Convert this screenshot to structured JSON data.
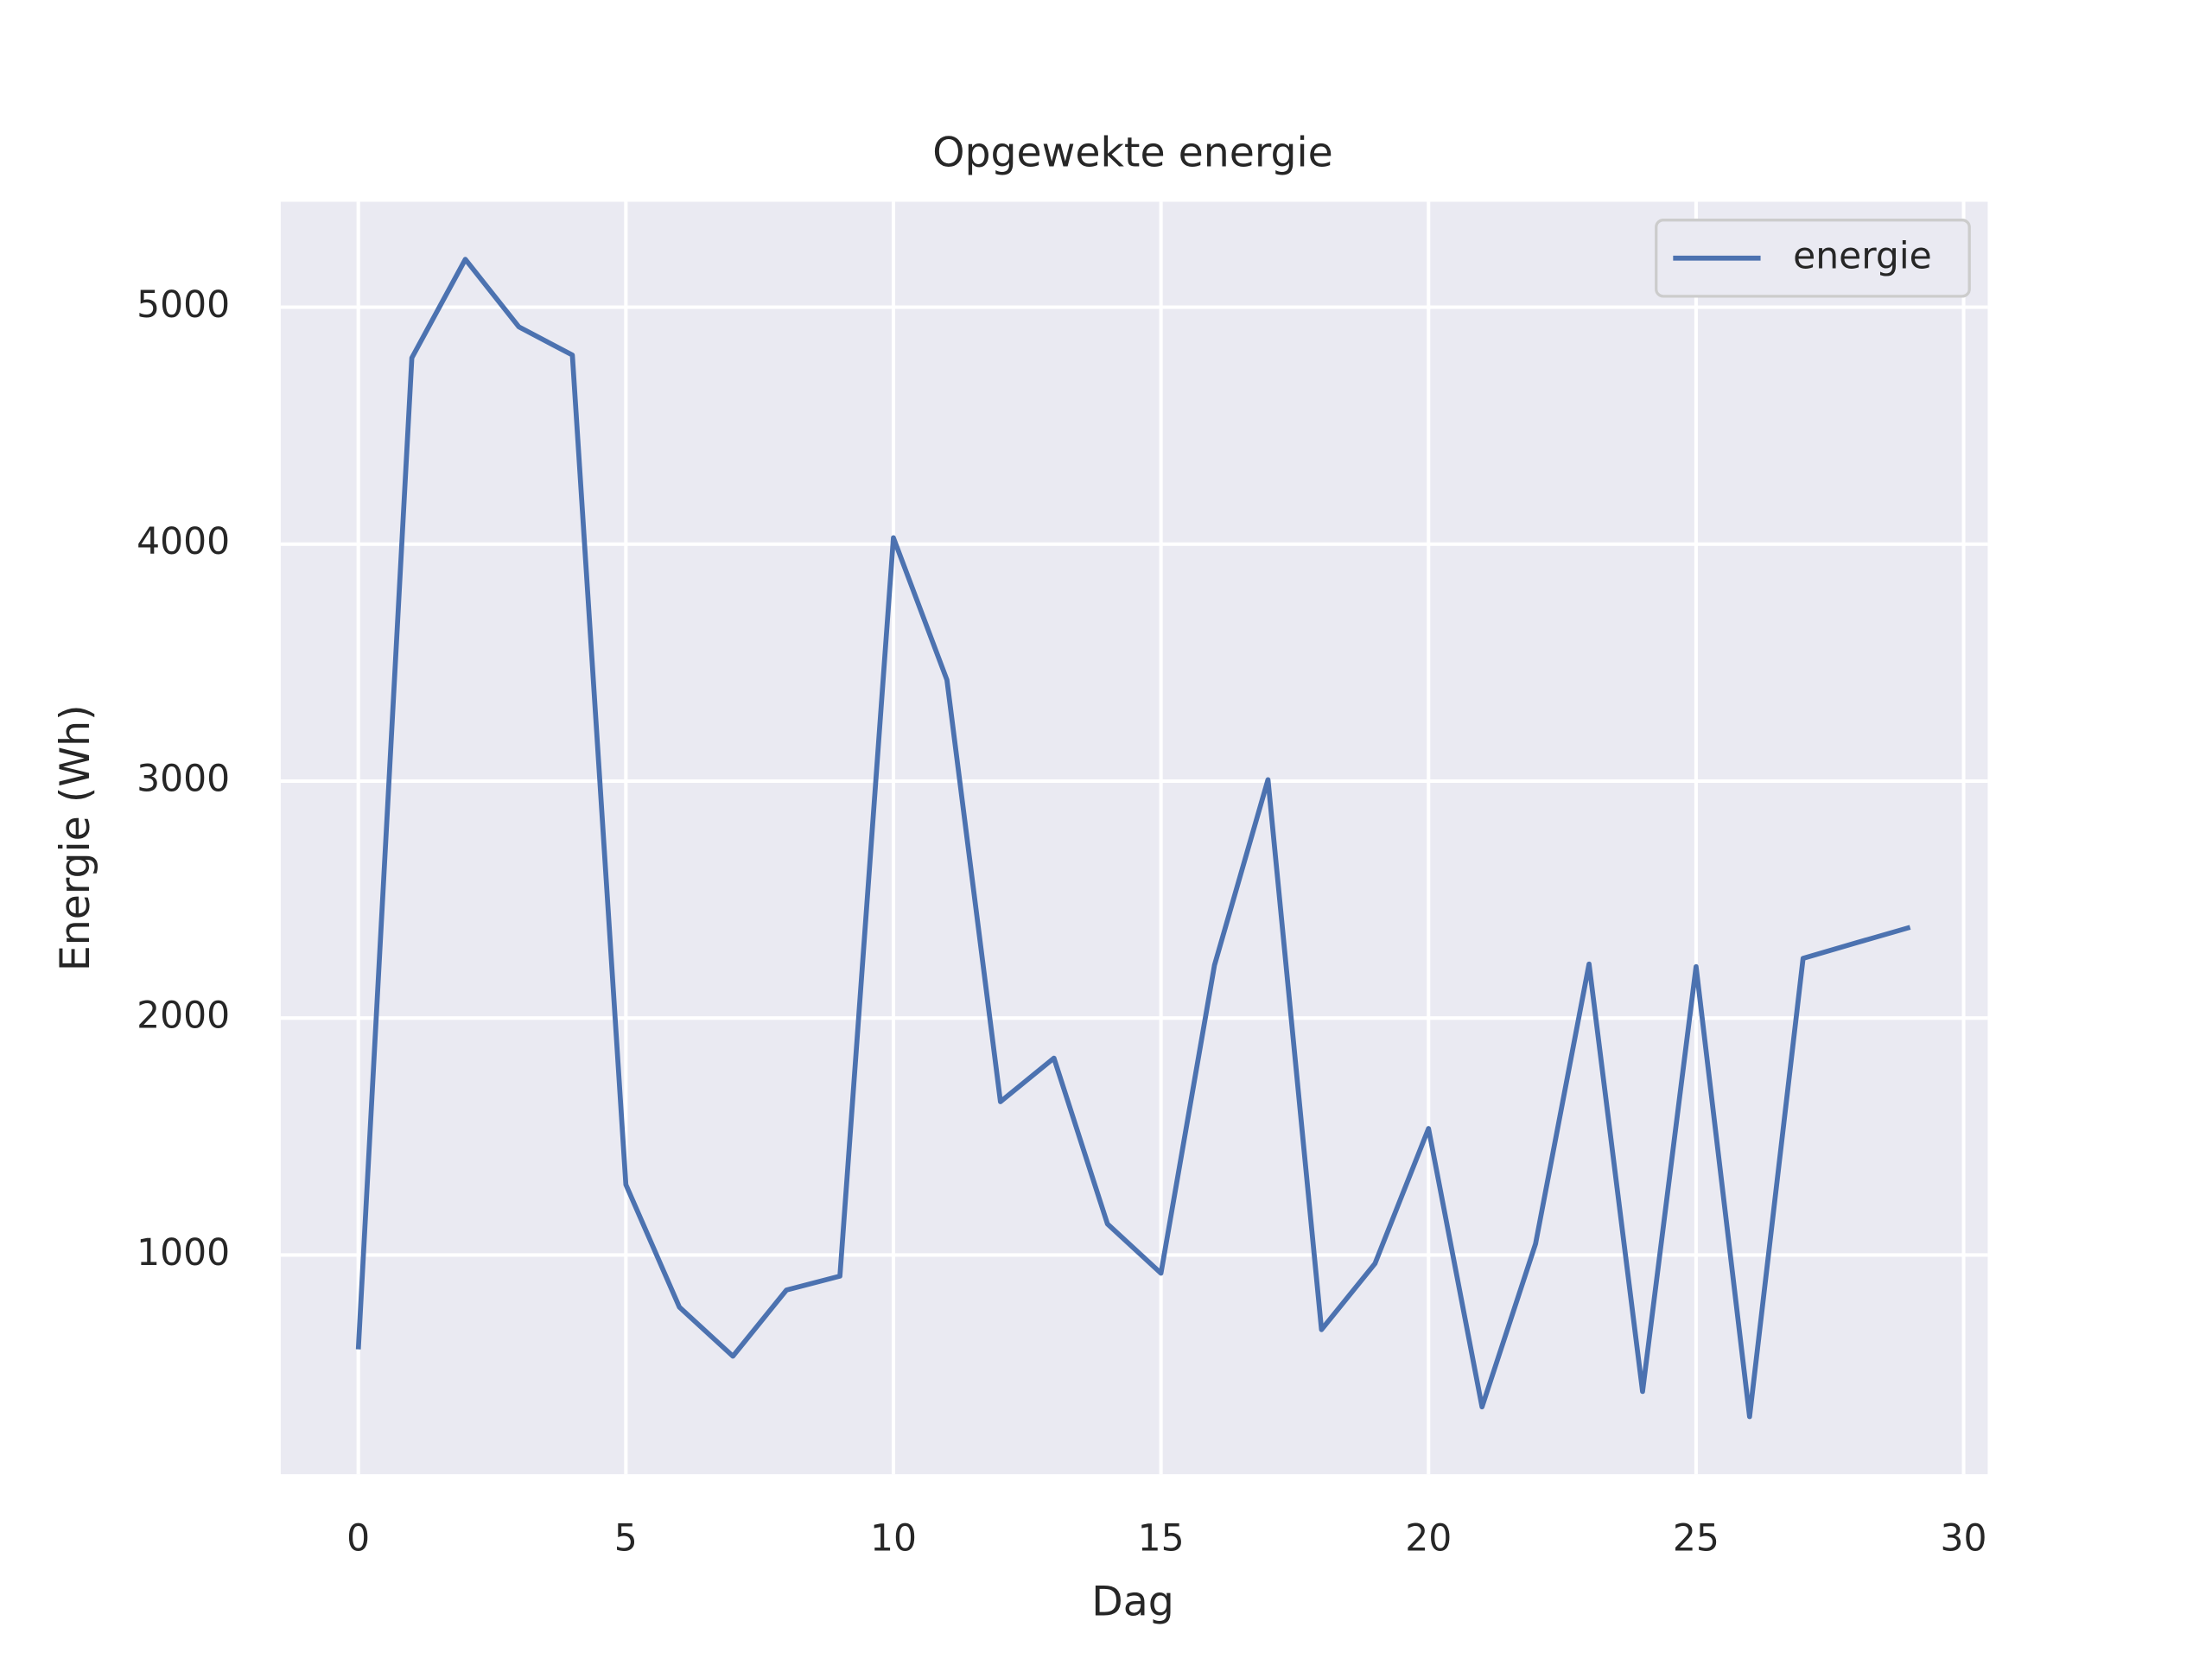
{
  "chart_data": {
    "type": "line",
    "title": "Opgewekte energie",
    "x_label": "Dag",
    "y_label": "Energie (Wh)",
    "x": [
      0,
      1,
      2,
      3,
      4,
      5,
      6,
      7,
      8,
      9,
      10,
      11,
      12,
      13,
      14,
      15,
      16,
      17,
      18,
      19,
      20,
      21,
      22,
      23,
      24,
      25,
      26,
      27,
      28,
      29
    ],
    "series": [
      {
        "name": "energie",
        "color": "#4c72b0",
        "values": [
          602,
          4786,
          5202,
          4917,
          4798,
          1297,
          780,
          573,
          852,
          911,
          4027,
          3427,
          1647,
          1831,
          1131,
          923,
          2223,
          3006,
          685,
          964,
          1534,
          359,
          1047,
          2228,
          424,
          2217,
          318,
          2252,
          2318,
          2383
        ]
      }
    ],
    "xlim": [
      -1.45,
      30.45
    ],
    "xticks": [
      0,
      5,
      10,
      15,
      20,
      25,
      30
    ],
    "ylim": [
      75,
      5445
    ],
    "yticks": [
      1000,
      2000,
      3000,
      4000,
      5000
    ],
    "grid": true,
    "legend": "upper right"
  }
}
